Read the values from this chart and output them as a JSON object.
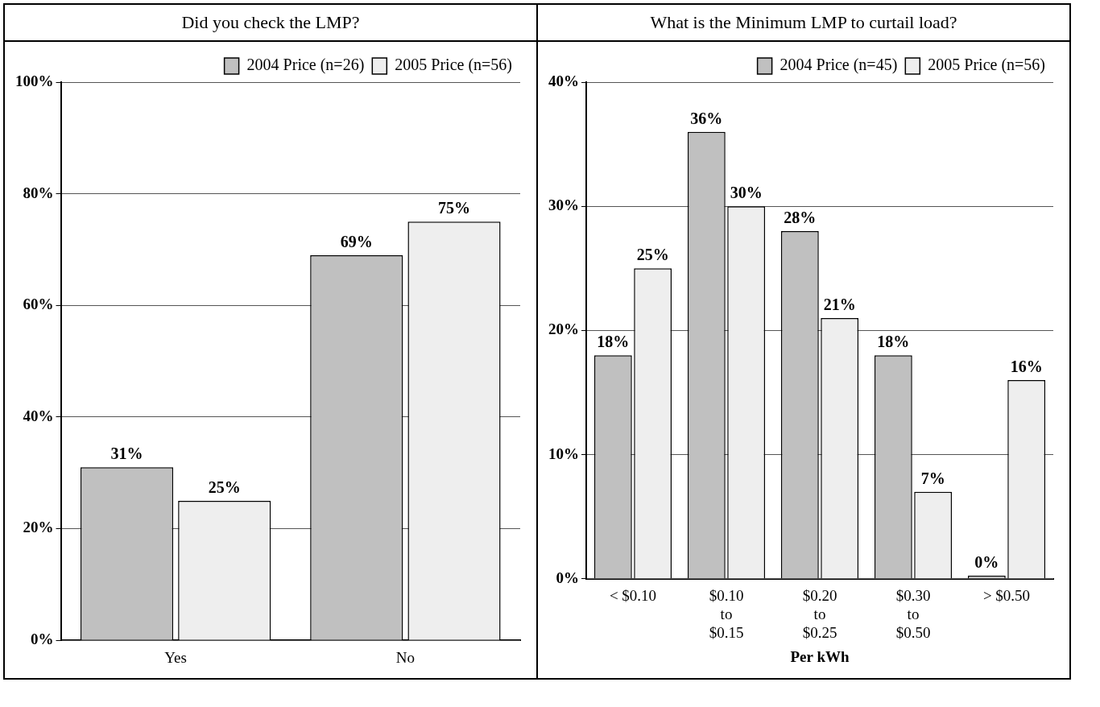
{
  "chart_data": [
    {
      "type": "bar",
      "title": "Did you check the LMP?",
      "categories": [
        "Yes",
        "No"
      ],
      "series": [
        {
          "name": "2004 Price (n=26)",
          "color": "#c0c0c0",
          "values": [
            31,
            69
          ],
          "value_labels": [
            "31%",
            "69%"
          ]
        },
        {
          "name": "2005 Price (n=56)",
          "color": "#eeeeee",
          "values": [
            25,
            75
          ],
          "value_labels": [
            "25%",
            "75%"
          ]
        }
      ],
      "ylim": [
        0,
        100
      ],
      "yticks": [
        {
          "value": 0,
          "label": "0%"
        },
        {
          "value": 20,
          "label": "20%"
        },
        {
          "value": 40,
          "label": "40%"
        },
        {
          "value": 60,
          "label": "60%"
        },
        {
          "value": 80,
          "label": "80%"
        },
        {
          "value": 100,
          "label": "100%"
        }
      ],
      "grid": "y",
      "legend": "top right"
    },
    {
      "type": "bar",
      "title": "What is the Minimum LMP to curtail load?",
      "xlabel": "Per kWh",
      "categories": [
        "< $0.10",
        "$0.10\nto\n$0.15",
        "$0.20\nto\n$0.25",
        "$0.30\nto\n$0.50",
        "> $0.50"
      ],
      "series": [
        {
          "name": "2004 Price (n=45)",
          "color": "#c0c0c0",
          "values": [
            18,
            36,
            28,
            18,
            0
          ],
          "value_labels": [
            "18%",
            "36%",
            "28%",
            "18%",
            "0%"
          ]
        },
        {
          "name": "2005 Price (n=56)",
          "color": "#eeeeee",
          "values": [
            25,
            30,
            21,
            7,
            16
          ],
          "value_labels": [
            "25%",
            "30%",
            "21%",
            "7%",
            "16%"
          ]
        }
      ],
      "ylim": [
        0,
        40
      ],
      "yticks": [
        {
          "value": 0,
          "label": "0%"
        },
        {
          "value": 10,
          "label": "10%"
        },
        {
          "value": 20,
          "label": "20%"
        },
        {
          "value": 30,
          "label": "30%"
        },
        {
          "value": 40,
          "label": "40%"
        }
      ],
      "grid": "y",
      "legend": "top right"
    }
  ]
}
